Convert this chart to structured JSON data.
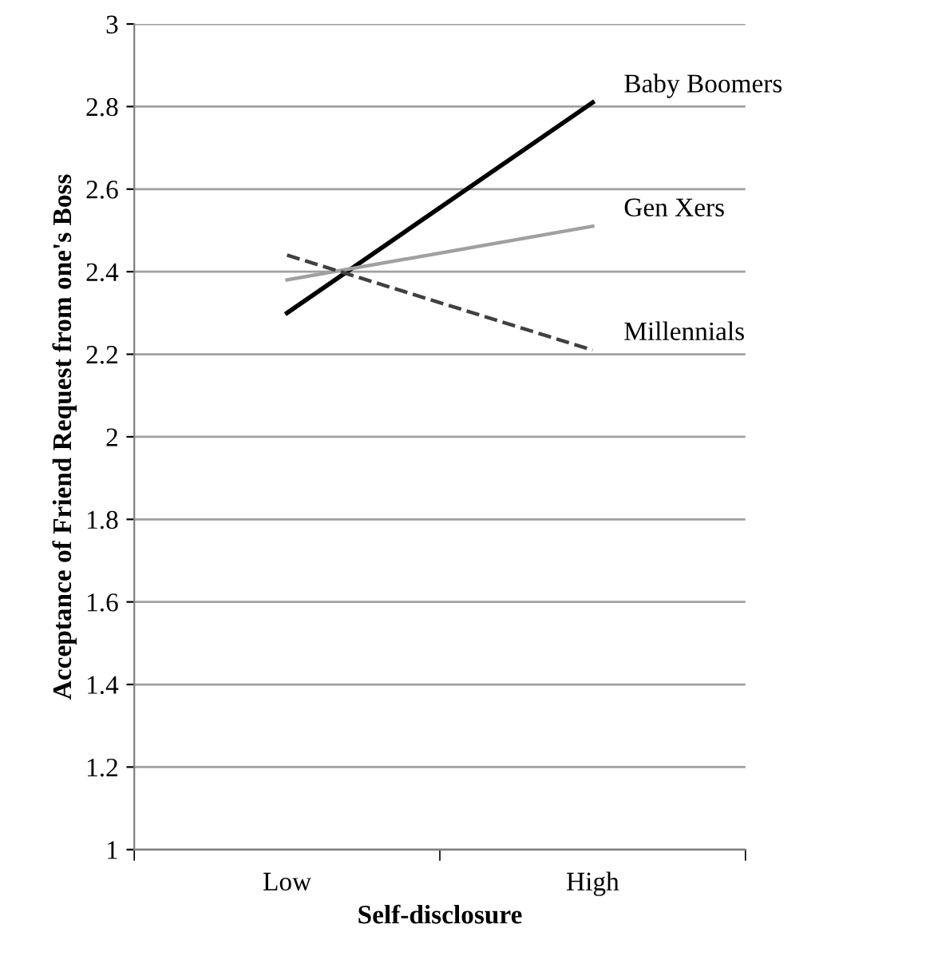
{
  "chart_data": {
    "type": "line",
    "xlabel": "Self-disclosure",
    "ylabel": "Acceptance of Friend Request from one's Boss",
    "categories": [
      "Low",
      "High"
    ],
    "series": [
      {
        "name": "Baby Boomers",
        "color": "#000000",
        "values": [
          2.3,
          2.81
        ],
        "line_style": "solid"
      },
      {
        "name": "Gen Xers",
        "color": "#a0a0a0",
        "values": [
          2.38,
          2.51
        ],
        "line_style": "solid"
      },
      {
        "name": "Millennials",
        "color": "#404040",
        "values": [
          2.44,
          2.21
        ],
        "line_style": "dashed"
      }
    ],
    "ylim": [
      1,
      3
    ],
    "yticks": [
      1,
      1.2,
      1.4,
      1.6,
      1.8,
      2,
      2.2,
      2.4,
      2.6,
      2.8,
      3
    ],
    "grid": "y",
    "legend": false,
    "marker": "none"
  }
}
